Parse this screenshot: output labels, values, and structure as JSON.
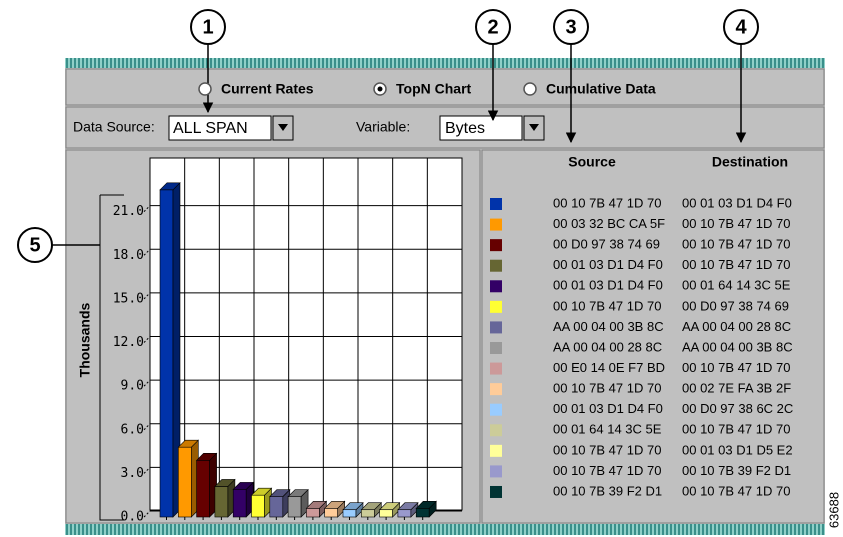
{
  "callouts": [
    "1",
    "2",
    "3",
    "4",
    "5"
  ],
  "figure_id": "63688",
  "view_options": [
    "Current Rates",
    "TopN Chart",
    "Cumulative Data"
  ],
  "selected_view": 1,
  "data_source": {
    "label": "Data Source:",
    "value": "ALL SPAN"
  },
  "variable": {
    "label": "Variable:",
    "value": "Bytes"
  },
  "chart": {
    "type": "bar",
    "ylabel": "Thousands",
    "ylim": [
      0,
      24
    ],
    "yticks": [
      {
        "value": 0,
        "label": "0.0"
      },
      {
        "value": 3,
        "label": "3.0"
      },
      {
        "value": 6,
        "label": "6.0"
      },
      {
        "value": 9,
        "label": "9.0"
      },
      {
        "value": 12,
        "label": "12.0"
      },
      {
        "value": 15,
        "label": "15.0"
      },
      {
        "value": 18,
        "label": "18.0"
      },
      {
        "value": 21,
        "label": "21.0"
      }
    ],
    "values": [
      22.5,
      4.8,
      3.9,
      2.1,
      1.9,
      1.5,
      1.4,
      1.4,
      0.6,
      0.6,
      0.5,
      0.5,
      0.5,
      0.5,
      0.6
    ],
    "colors": [
      "#0033aa",
      "#ff9900",
      "#660000",
      "#666633",
      "#330066",
      "#ffff33",
      "#666699",
      "#999999",
      "#cc9999",
      "#ffcc99",
      "#99ccff",
      "#cccc99",
      "#ffff99",
      "#9999cc",
      "#003333"
    ]
  },
  "table": {
    "headers": [
      "Source",
      "Destination"
    ],
    "rows": [
      [
        "00 10 7B 47 1D 70",
        "00 01 03 D1 D4 F0"
      ],
      [
        "00 03 32 BC CA 5F",
        "00 10 7B 47 1D 70"
      ],
      [
        "00 D0 97 38 74 69",
        "00 10 7B 47 1D 70"
      ],
      [
        "00 01 03 D1 D4 F0",
        "00 10 7B 47 1D 70"
      ],
      [
        "00 01 03 D1 D4 F0",
        "00 01 64 14 3C 5E"
      ],
      [
        "00 10 7B 47 1D 70",
        "00 D0 97 38 74 69"
      ],
      [
        "AA 00 04 00 3B 8C",
        "AA 00 04 00 28 8C"
      ],
      [
        "AA 00 04 00 28 8C",
        "AA 00 04 00 3B 8C"
      ],
      [
        "00 E0 14 0E F7 BD",
        "00 10 7B 47 1D 70"
      ],
      [
        "00 10 7B 47 1D 70",
        "00 02 7E FA 3B 2F"
      ],
      [
        "00 01 03 D1 D4 F0",
        "00 D0 97 38 6C 2C"
      ],
      [
        "00 01 64 14 3C 5E",
        "00 10 7B 47 1D 70"
      ],
      [
        "00 10 7B 47 1D 70",
        "00 01 03 D1 D5 E2"
      ],
      [
        "00 10 7B 47 1D 70",
        "00 10 7B 39 F2 D1"
      ],
      [
        "00 10 7B 39 F2 D1",
        "00 10 7B 47 1D 70"
      ]
    ]
  }
}
